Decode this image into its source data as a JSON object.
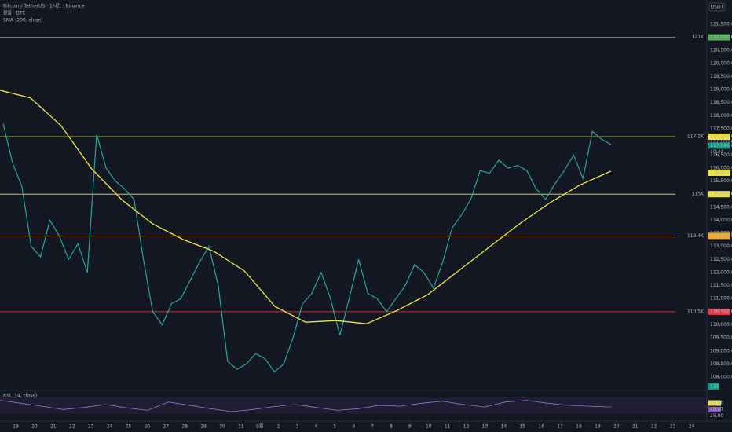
{
  "chart_data": {
    "type": "line",
    "title": "Bitcoin / TetherUS · 1시간 · Binance",
    "subtitle": "볼륨 · BTC",
    "indicator": "SMA (200, close)",
    "currency": "USDT",
    "x_labels": [
      "19",
      "20",
      "21",
      "22",
      "23",
      "24",
      "25",
      "26",
      "27",
      "28",
      "29",
      "30",
      "31",
      "9월",
      "2",
      "3",
      "4",
      "5",
      "6",
      "7",
      "8",
      "9",
      "10",
      "11",
      "12",
      "13",
      "14",
      "15",
      "16",
      "17",
      "18",
      "19",
      "20",
      "21",
      "22",
      "23",
      "24"
    ],
    "ylim": [
      107550,
      122430
    ],
    "yticks": [
      {
        "value": 108000,
        "label": "108,000.00"
      },
      {
        "value": 108500,
        "label": "108,500.00"
      },
      {
        "value": 109000,
        "label": "109,000.00"
      },
      {
        "value": 109500,
        "label": "109,500.00"
      },
      {
        "value": 110000,
        "label": "110,000.00"
      },
      {
        "value": 110500,
        "label": "110,500.00"
      },
      {
        "value": 111000,
        "label": "111,000.00"
      },
      {
        "value": 111500,
        "label": "111,500.00"
      },
      {
        "value": 112000,
        "label": "112,000.00"
      },
      {
        "value": 112500,
        "label": "112,500.00"
      },
      {
        "value": 113000,
        "label": "113,000.00"
      },
      {
        "value": 113500,
        "label": "113,500.00"
      },
      {
        "value": 114000,
        "label": "114,000.00"
      },
      {
        "value": 114500,
        "label": "114,500.00"
      },
      {
        "value": 115000,
        "label": "115,000.00"
      },
      {
        "value": 115500,
        "label": "115,500.00"
      },
      {
        "value": 116000,
        "label": "116,000.00"
      },
      {
        "value": 116500,
        "label": "116,500.00"
      },
      {
        "value": 117000,
        "label": "117,000.00"
      },
      {
        "value": 117500,
        "label": "117,500.00"
      },
      {
        "value": 118000,
        "label": "118,000.00"
      },
      {
        "value": 118500,
        "label": "118,500.00"
      },
      {
        "value": 119000,
        "label": "119,000.00"
      },
      {
        "value": 119500,
        "label": "119,500.00"
      },
      {
        "value": 120000,
        "label": "120,000.00"
      },
      {
        "value": 120500,
        "label": "120,500.00"
      },
      {
        "value": 121000,
        "label": "121,000.00"
      },
      {
        "value": 121500,
        "label": "121,500.00"
      }
    ],
    "series": [
      {
        "name": "Bitcoin / TetherUS",
        "color": "#26a69a",
        "values": [
          117700,
          116200,
          115300,
          113000,
          112600,
          114000,
          113400,
          112500,
          113100,
          112000,
          117300,
          116000,
          115500,
          115200,
          114800,
          112500,
          110500,
          110000,
          110800,
          111000,
          111700,
          112400,
          113000,
          111500,
          108600,
          108300,
          108500,
          108900,
          108700,
          108200,
          108500,
          109500,
          110800,
          111200,
          112000,
          111000,
          109600,
          111000,
          112500,
          111200,
          111000,
          110500,
          111000,
          111500,
          112300,
          112000,
          111400,
          112400,
          113700,
          114200,
          114800,
          115900,
          115800,
          116300,
          116000,
          116100,
          115900,
          115200,
          114800,
          115400,
          115900,
          116500,
          115600,
          117400,
          117100,
          116900
        ]
      },
      {
        "name": "SMA (200, close)",
        "color": "#f0e442",
        "values": [
          118975,
          118680,
          117620,
          115970,
          114770,
          113860,
          113260,
          112810,
          112060,
          110700,
          110100,
          110160,
          110040,
          110550,
          111150,
          112060,
          112960,
          113860,
          114670,
          115360,
          115880
        ]
      }
    ],
    "levels": [
      {
        "value": 121000,
        "label": "121K",
        "tag": "121,000.00",
        "color": "#4caf50"
      },
      {
        "value": 117200,
        "label": "117.2K",
        "tag": "117,200.00",
        "color": "#f0e442"
      },
      {
        "value": 115000,
        "label": "115K",
        "tag": "115,000.00",
        "color": "#f0e442"
      },
      {
        "value": 113400,
        "label": "113.4K",
        "tag": "113,400.00",
        "color": "#f5a623"
      },
      {
        "value": 110500,
        "label": "110.5K",
        "tag": "110,500.00",
        "color": "#f23645"
      }
    ],
    "last_price": {
      "value": 117040,
      "label": "117,040.00"
    },
    "countdown": "40:44",
    "sma_last": {
      "value": 115817.72,
      "label": "115,817.72"
    },
    "volume_last": "122",
    "rsi": {
      "title": "RSI (14, close)",
      "color": "#9575cd",
      "ylim": [
        20,
        80
      ],
      "yticks": [
        {
          "value": 25,
          "label": "25.00"
        }
      ],
      "values": [
        62,
        55,
        48,
        40,
        45,
        52,
        44,
        38,
        58,
        50,
        42,
        35,
        40,
        47,
        52,
        45,
        38,
        42,
        50,
        48,
        55,
        60,
        52,
        46,
        58,
        62,
        55,
        50,
        48,
        46
      ],
      "last": [
        {
          "value": 49.96,
          "label": "49.96"
        },
        {
          "value": 45.47,
          "label": "45.47"
        }
      ]
    }
  }
}
